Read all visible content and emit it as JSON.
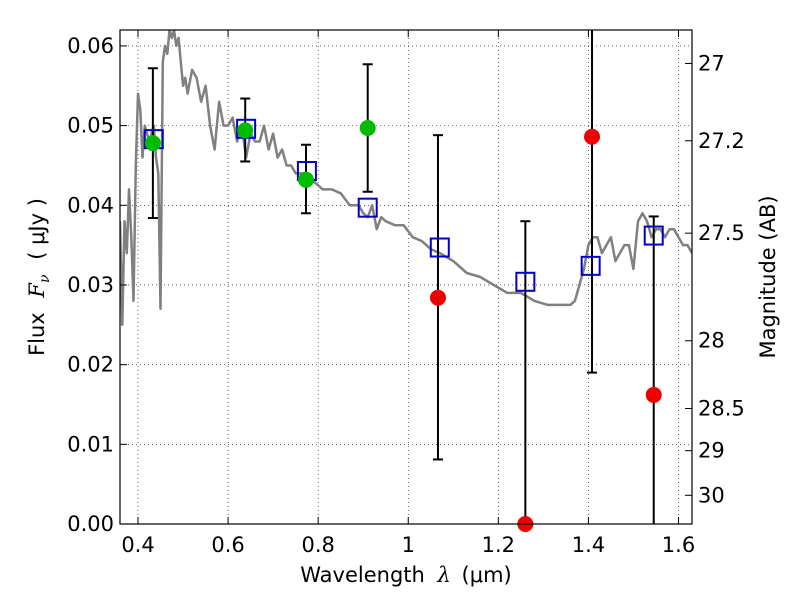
{
  "chart_data": {
    "type": "scatter",
    "xlabel": "Wavelength",
    "xlabel_symbol": "λ",
    "xlabel_unit": "(μm)",
    "ylabel": "Flux",
    "ylabel_symbol": "F",
    "ylabel_symbol_sub": "ν",
    "ylabel_unit": "( μJy )",
    "ylabel_right": "Magnitude (AB)",
    "xlim": [
      0.36,
      1.63
    ],
    "ylim": [
      0.0,
      0.062
    ],
    "grid": true,
    "x_ticks": [
      0.4,
      0.6,
      0.8,
      1.0,
      1.2,
      1.4,
      1.6
    ],
    "x_tick_labels": [
      "0.4",
      "0.6",
      "0.8",
      "1",
      "1.2",
      "1.4",
      "1.6"
    ],
    "y_ticks": [
      0.0,
      0.01,
      0.02,
      0.03,
      0.04,
      0.05,
      0.06
    ],
    "y_tick_labels": [
      "0.00",
      "0.01",
      "0.02",
      "0.03",
      "0.04",
      "0.05",
      "0.06"
    ],
    "right_ticks": [
      {
        "label": "27",
        "flux": 0.0578
      },
      {
        "label": "27.2",
        "flux": 0.0481
      },
      {
        "label": "27.5",
        "flux": 0.0365
      },
      {
        "label": "28",
        "flux": 0.023
      },
      {
        "label": "28.5",
        "flux": 0.0145
      },
      {
        "label": "29",
        "flux": 0.0092
      },
      {
        "label": "30",
        "flux": 0.0036
      }
    ],
    "model_color": "#808080",
    "model_x": [
      0.36,
      0.365,
      0.37,
      0.375,
      0.38,
      0.385,
      0.39,
      0.395,
      0.4,
      0.405,
      0.41,
      0.415,
      0.42,
      0.425,
      0.43,
      0.435,
      0.44,
      0.445,
      0.45,
      0.455,
      0.46,
      0.465,
      0.47,
      0.475,
      0.48,
      0.485,
      0.49,
      0.495,
      0.5,
      0.505,
      0.51,
      0.52,
      0.53,
      0.54,
      0.55,
      0.56,
      0.57,
      0.58,
      0.59,
      0.6,
      0.61,
      0.62,
      0.63,
      0.64,
      0.65,
      0.66,
      0.67,
      0.68,
      0.69,
      0.7,
      0.71,
      0.72,
      0.73,
      0.74,
      0.75,
      0.77,
      0.79,
      0.81,
      0.83,
      0.85,
      0.87,
      0.89,
      0.9,
      0.91,
      0.92,
      0.93,
      0.94,
      0.95,
      0.97,
      0.99,
      1.01,
      1.03,
      1.05,
      1.07,
      1.1,
      1.13,
      1.16,
      1.19,
      1.22,
      1.25,
      1.28,
      1.31,
      1.34,
      1.36,
      1.37,
      1.38,
      1.39,
      1.4,
      1.41,
      1.42,
      1.43,
      1.44,
      1.45,
      1.46,
      1.47,
      1.48,
      1.49,
      1.5,
      1.51,
      1.52,
      1.53,
      1.54,
      1.55,
      1.56,
      1.57,
      1.58,
      1.59,
      1.6,
      1.61,
      1.62,
      1.63
    ],
    "model_y": [
      0.038,
      0.025,
      0.038,
      0.034,
      0.042,
      0.036,
      0.028,
      0.045,
      0.054,
      0.052,
      0.046,
      0.05,
      0.049,
      0.048,
      0.049,
      0.05,
      0.046,
      0.044,
      0.027,
      0.058,
      0.06,
      0.059,
      0.062,
      0.061,
      0.062,
      0.06,
      0.061,
      0.058,
      0.055,
      0.056,
      0.054,
      0.057,
      0.056,
      0.053,
      0.055,
      0.05,
      0.047,
      0.053,
      0.05,
      0.05,
      0.051,
      0.048,
      0.05,
      0.046,
      0.049,
      0.048,
      0.048,
      0.05,
      0.047,
      0.049,
      0.046,
      0.047,
      0.045,
      0.045,
      0.044,
      0.044,
      0.043,
      0.042,
      0.042,
      0.0415,
      0.04,
      0.04,
      0.039,
      0.0385,
      0.04,
      0.037,
      0.0385,
      0.038,
      0.0375,
      0.0375,
      0.036,
      0.0355,
      0.0345,
      0.034,
      0.033,
      0.0315,
      0.031,
      0.03,
      0.029,
      0.029,
      0.028,
      0.0275,
      0.0275,
      0.0275,
      0.028,
      0.03,
      0.032,
      0.035,
      0.036,
      0.036,
      0.034,
      0.035,
      0.036,
      0.033,
      0.034,
      0.035,
      0.035,
      0.032,
      0.038,
      0.039,
      0.038,
      0.036,
      0.037,
      0.037,
      0.036,
      0.037,
      0.037,
      0.036,
      0.035,
      0.035,
      0.034
    ],
    "model_points_color": "#0000cc",
    "model_points": [
      {
        "x": 0.435,
        "y": 0.0483
      },
      {
        "x": 0.64,
        "y": 0.0496
      },
      {
        "x": 0.775,
        "y": 0.0443
      },
      {
        "x": 0.91,
        "y": 0.0397
      },
      {
        "x": 1.07,
        "y": 0.0347
      },
      {
        "x": 1.26,
        "y": 0.0304
      },
      {
        "x": 1.405,
        "y": 0.0324
      },
      {
        "x": 1.545,
        "y": 0.0362
      }
    ],
    "detection_color": "#00bb00",
    "detections": [
      {
        "x": 0.433,
        "y": 0.0478,
        "err_low": 0.0384,
        "err_high": 0.0572
      },
      {
        "x": 0.638,
        "y": 0.0494,
        "err_low": 0.0455,
        "err_high": 0.0534
      },
      {
        "x": 0.773,
        "y": 0.0432,
        "err_low": 0.039,
        "err_high": 0.0476
      },
      {
        "x": 0.91,
        "y": 0.0497,
        "err_low": 0.0417,
        "err_high": 0.0577
      }
    ],
    "nondetection_color": "#ee0000",
    "nondetections": [
      {
        "x": 1.066,
        "y": 0.0284,
        "err_low": 0.0081,
        "err_high": 0.0488
      },
      {
        "x": 1.26,
        "y": 0.0,
        "err_low": 0.0,
        "err_high": 0.038
      },
      {
        "x": 1.408,
        "y": 0.0486,
        "err_low": 0.019,
        "err_high": 0.062
      },
      {
        "x": 1.545,
        "y": 0.0162,
        "err_low": 0.0,
        "err_high": 0.0386
      }
    ]
  }
}
